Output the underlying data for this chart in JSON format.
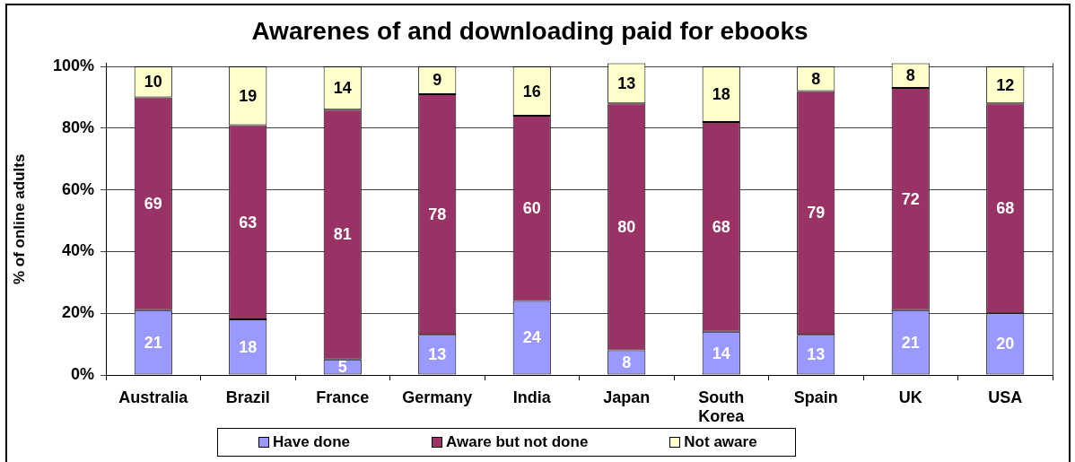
{
  "chart_data": {
    "type": "bar",
    "title": "Awarenes of and downloading paid for ebooks",
    "ylabel": "% of online adults",
    "categories": [
      "Australia",
      "Brazil",
      "France",
      "Germany",
      "India",
      "Japan",
      "South Korea",
      "Spain",
      "UK",
      "USA"
    ],
    "series": [
      {
        "name": "Have done",
        "color": "#9999ff",
        "values": [
          21,
          18,
          5,
          13,
          24,
          8,
          14,
          13,
          21,
          20
        ]
      },
      {
        "name": "Aware but not done",
        "color": "#993366",
        "values": [
          69,
          63,
          81,
          78,
          60,
          80,
          68,
          79,
          72,
          68
        ]
      },
      {
        "name": "Not aware",
        "color": "#ffffcc",
        "values": [
          10,
          19,
          14,
          9,
          16,
          13,
          18,
          8,
          8,
          12
        ]
      }
    ],
    "stacked": true,
    "ylim": [
      0,
      101
    ],
    "yticks": [
      {
        "value": 0,
        "label": "0%"
      },
      {
        "value": 20,
        "label": "20%"
      },
      {
        "value": 40,
        "label": "40%"
      },
      {
        "value": 60,
        "label": "60%"
      },
      {
        "value": 80,
        "label": "80%"
      },
      {
        "value": 100,
        "label": "100%"
      }
    ],
    "grid": "y",
    "legend": "bottom",
    "data_labels": true
  }
}
